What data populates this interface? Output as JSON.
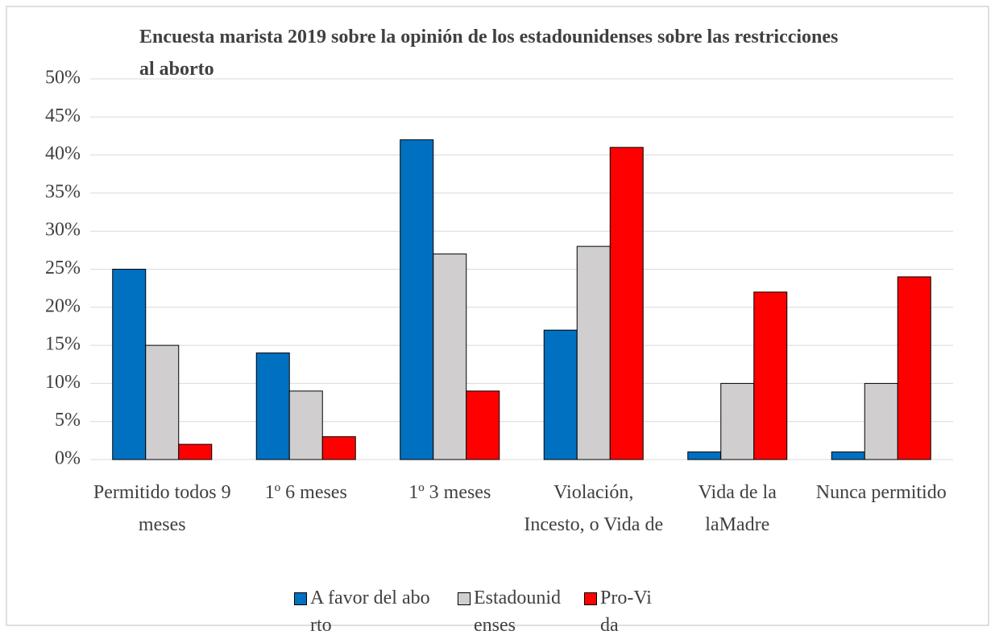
{
  "chart_data": {
    "type": "bar",
    "title": "Encuesta marista 2019 sobre la opinión de los estadounidenses sobre las restricciones al aborto",
    "categories": [
      "Permitido todos 9 meses",
      "1º 6 meses",
      "1º 3 meses",
      "Violación, Incesto, o Vida de",
      "Vida de la laMadre",
      "Nunca permitido"
    ],
    "series": [
      {
        "name": "A favor del aborto",
        "color": "#0070c0",
        "values": [
          25,
          14,
          42,
          17,
          1,
          1
        ]
      },
      {
        "name": "Estadounidenses",
        "color": "#d0cece",
        "values": [
          15,
          9,
          27,
          28,
          10,
          10
        ]
      },
      {
        "name": "Pro-Vida",
        "color": "#ff0000",
        "values": [
          2,
          3,
          9,
          41,
          22,
          24
        ]
      }
    ],
    "ylim": [
      0,
      50
    ],
    "yticks": [
      {
        "value": 0,
        "label": "0%"
      },
      {
        "value": 5,
        "label": "5%"
      },
      {
        "value": 10,
        "label": "10%"
      },
      {
        "value": 15,
        "label": "15%"
      },
      {
        "value": 20,
        "label": "20%"
      },
      {
        "value": 25,
        "label": "25%"
      },
      {
        "value": 30,
        "label": "30%"
      },
      {
        "value": 35,
        "label": "35%"
      },
      {
        "value": 40,
        "label": "40%"
      },
      {
        "value": 45,
        "label": "45%"
      },
      {
        "value": 50,
        "label": "50%"
      }
    ],
    "grid": true
  }
}
